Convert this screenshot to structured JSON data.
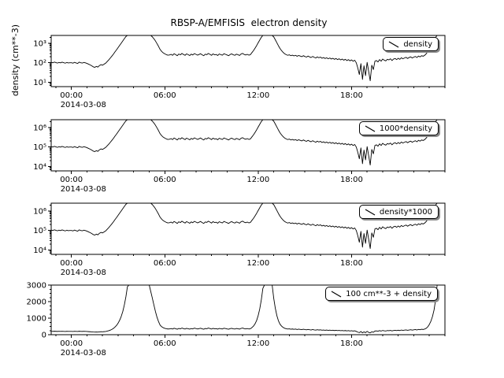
{
  "chart_data": {
    "type": "line",
    "title": "RBSP-A/EMFISIS  electron density",
    "ylabel": "density (cm**-3)",
    "line_color": "#000000",
    "background": "#ffffff",
    "x_axis": {
      "range_hours": [
        -1.3,
        24.0
      ],
      "tick_hours": [
        0,
        6,
        12,
        18
      ],
      "tick_labels": [
        "00:00",
        "06:00",
        "12:00",
        "18:00"
      ],
      "date_label": "2014-03-08",
      "minor_tick_every_hours": 1
    },
    "x_start": -1.3,
    "x_step": 0.1,
    "density_cm3": [
      105,
      100,
      108,
      102,
      96,
      104,
      99,
      107,
      101,
      95,
      103,
      98,
      100,
      100,
      95,
      105,
      98,
      92,
      108,
      100,
      96,
      104,
      99,
      92,
      85,
      78,
      70,
      62,
      58,
      65,
      60,
      72,
      80,
      75,
      85,
      95,
      115,
      140,
      175,
      220,
      280,
      360,
      460,
      600,
      780,
      1000,
      1300,
      1700,
      2200,
      2800,
      3500,
      4300,
      5000,
      5600,
      6000,
      6200,
      6100,
      5900,
      5600,
      5200,
      4700,
      4100,
      3500,
      3000,
      2500,
      2100,
      1700,
      1300,
      950,
      680,
      480,
      380,
      320,
      285,
      260,
      245,
      250,
      270,
      240,
      290,
      260,
      230,
      280,
      255,
      300,
      265,
      240,
      285,
      260,
      235,
      275,
      250,
      295,
      270,
      245,
      265,
      290,
      255,
      230,
      275,
      260,
      300,
      270,
      240,
      285,
      255,
      265,
      235,
      280,
      260,
      245,
      290,
      270,
      250,
      230,
      265,
      285,
      255,
      240,
      275,
      260,
      235,
      280,
      300,
      265,
      250,
      270,
      245,
      260,
      330,
      420,
      560,
      760,
      1050,
      1450,
      2000,
      2700,
      3400,
      4100,
      4500,
      4300,
      3700,
      2900,
      2100,
      1500,
      1050,
      750,
      540,
      420,
      340,
      290,
      260,
      240,
      255,
      230,
      245,
      225,
      240,
      215,
      235,
      220,
      205,
      230,
      210,
      195,
      220,
      200,
      185,
      210,
      190,
      175,
      200,
      180,
      195,
      170,
      185,
      165,
      180,
      160,
      175,
      155,
      170,
      150,
      165,
      145,
      160,
      140,
      155,
      135,
      150,
      130,
      145,
      125,
      140,
      120,
      135,
      100,
      55,
      25,
      90,
      14,
      70,
      22,
      105,
      35,
      12,
      75,
      45,
      120,
      130,
      110,
      145,
      120,
      155,
      135,
      125,
      150,
      140,
      160,
      130,
      155,
      165,
      145,
      170,
      150,
      180,
      160,
      175,
      190,
      165,
      185,
      200,
      175,
      195,
      210,
      185,
      220,
      200,
      230,
      215,
      240,
      290,
      380,
      520,
      720,
      1000,
      1400,
      2000,
      2900,
      4100,
      5600,
      7200,
      8500
    ],
    "panels": [
      {
        "legend": "density",
        "scale": "log",
        "ylim": [
          6,
          2500
        ],
        "yticks": [
          10,
          100,
          1000
        ],
        "ytick_labels": [
          "10¹",
          "10²",
          "10³"
        ],
        "transform": {
          "multiply": 1,
          "add": 0
        }
      },
      {
        "legend": "1000*density",
        "scale": "log",
        "ylim": [
          6000,
          2500000
        ],
        "yticks": [
          10000,
          100000,
          1000000
        ],
        "ytick_labels": [
          "10⁴",
          "10⁵",
          "10⁶"
        ],
        "transform": {
          "multiply": 1000,
          "add": 0
        }
      },
      {
        "legend": "density*1000",
        "scale": "log",
        "ylim": [
          6000,
          2500000
        ],
        "yticks": [
          10000,
          100000,
          1000000
        ],
        "ytick_labels": [
          "10⁴",
          "10⁵",
          "10⁶"
        ],
        "transform": {
          "multiply": 1000,
          "add": 0
        }
      },
      {
        "legend": "100 cm**-3 + density",
        "scale": "linear",
        "ylim": [
          0,
          3000
        ],
        "yticks": [
          0,
          1000,
          2000,
          3000
        ],
        "ytick_labels": [
          "0",
          "1000",
          "2000",
          "3000"
        ],
        "transform": {
          "multiply": 1,
          "add": 100
        }
      }
    ]
  }
}
